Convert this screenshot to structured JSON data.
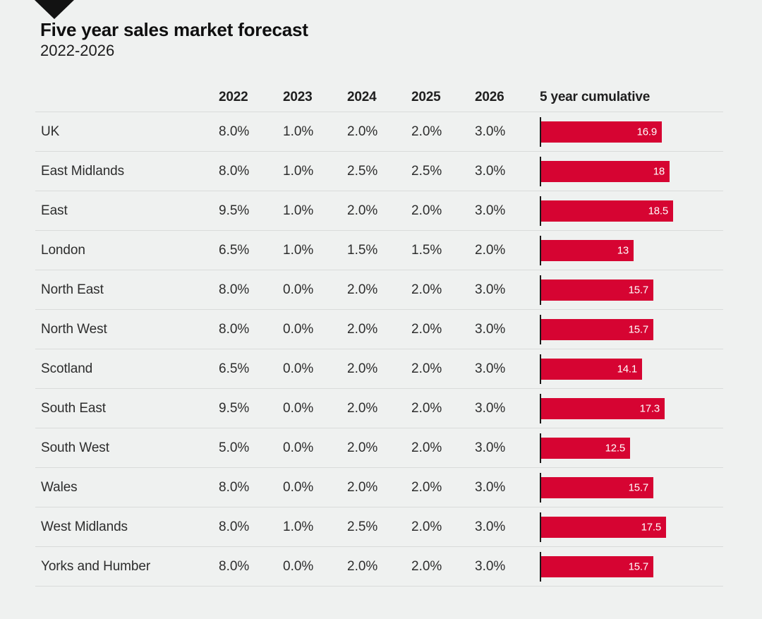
{
  "accent_color": "#d60432",
  "background_color": "#eff1f0",
  "header": {
    "title": "Five year sales market forecast",
    "subtitle": "2022-2026"
  },
  "table": {
    "columns": [
      "2022",
      "2023",
      "2024",
      "2025",
      "2026",
      "5 year cumulative"
    ]
  },
  "chart_data": {
    "type": "bar",
    "orientation": "horizontal",
    "title": "Five year sales market forecast",
    "subtitle": "2022-2026",
    "columns": [
      "2022",
      "2023",
      "2024",
      "2025",
      "2026",
      "5 year cumulative"
    ],
    "bar_color": "#d60432",
    "bar_scale_max": 18.5,
    "rows": [
      {
        "region": "UK",
        "values": [
          "8.0%",
          "1.0%",
          "2.0%",
          "2.0%",
          "3.0%"
        ],
        "cumulative": 16.9,
        "cumulative_label": "16.9"
      },
      {
        "region": "East Midlands",
        "values": [
          "8.0%",
          "1.0%",
          "2.5%",
          "2.5%",
          "3.0%"
        ],
        "cumulative": 18.0,
        "cumulative_label": "18"
      },
      {
        "region": "East",
        "values": [
          "9.5%",
          "1.0%",
          "2.0%",
          "2.0%",
          "3.0%"
        ],
        "cumulative": 18.5,
        "cumulative_label": "18.5"
      },
      {
        "region": "London",
        "values": [
          "6.5%",
          "1.0%",
          "1.5%",
          "1.5%",
          "2.0%"
        ],
        "cumulative": 13.0,
        "cumulative_label": "13"
      },
      {
        "region": "North East",
        "values": [
          "8.0%",
          "0.0%",
          "2.0%",
          "2.0%",
          "3.0%"
        ],
        "cumulative": 15.7,
        "cumulative_label": "15.7"
      },
      {
        "region": "North West",
        "values": [
          "8.0%",
          "0.0%",
          "2.0%",
          "2.0%",
          "3.0%"
        ],
        "cumulative": 15.7,
        "cumulative_label": "15.7"
      },
      {
        "region": "Scotland",
        "values": [
          "6.5%",
          "0.0%",
          "2.0%",
          "2.0%",
          "3.0%"
        ],
        "cumulative": 14.1,
        "cumulative_label": "14.1"
      },
      {
        "region": "South East",
        "values": [
          "9.5%",
          "0.0%",
          "2.0%",
          "2.0%",
          "3.0%"
        ],
        "cumulative": 17.3,
        "cumulative_label": "17.3"
      },
      {
        "region": "South West",
        "values": [
          "5.0%",
          "0.0%",
          "2.0%",
          "2.0%",
          "3.0%"
        ],
        "cumulative": 12.5,
        "cumulative_label": "12.5"
      },
      {
        "region": "Wales",
        "values": [
          "8.0%",
          "0.0%",
          "2.0%",
          "2.0%",
          "3.0%"
        ],
        "cumulative": 15.7,
        "cumulative_label": "15.7"
      },
      {
        "region": "West Midlands",
        "values": [
          "8.0%",
          "1.0%",
          "2.5%",
          "2.0%",
          "3.0%"
        ],
        "cumulative": 17.5,
        "cumulative_label": "17.5"
      },
      {
        "region": "Yorks and Humber",
        "values": [
          "8.0%",
          "0.0%",
          "2.0%",
          "2.0%",
          "3.0%"
        ],
        "cumulative": 15.7,
        "cumulative_label": "15.7"
      }
    ]
  }
}
